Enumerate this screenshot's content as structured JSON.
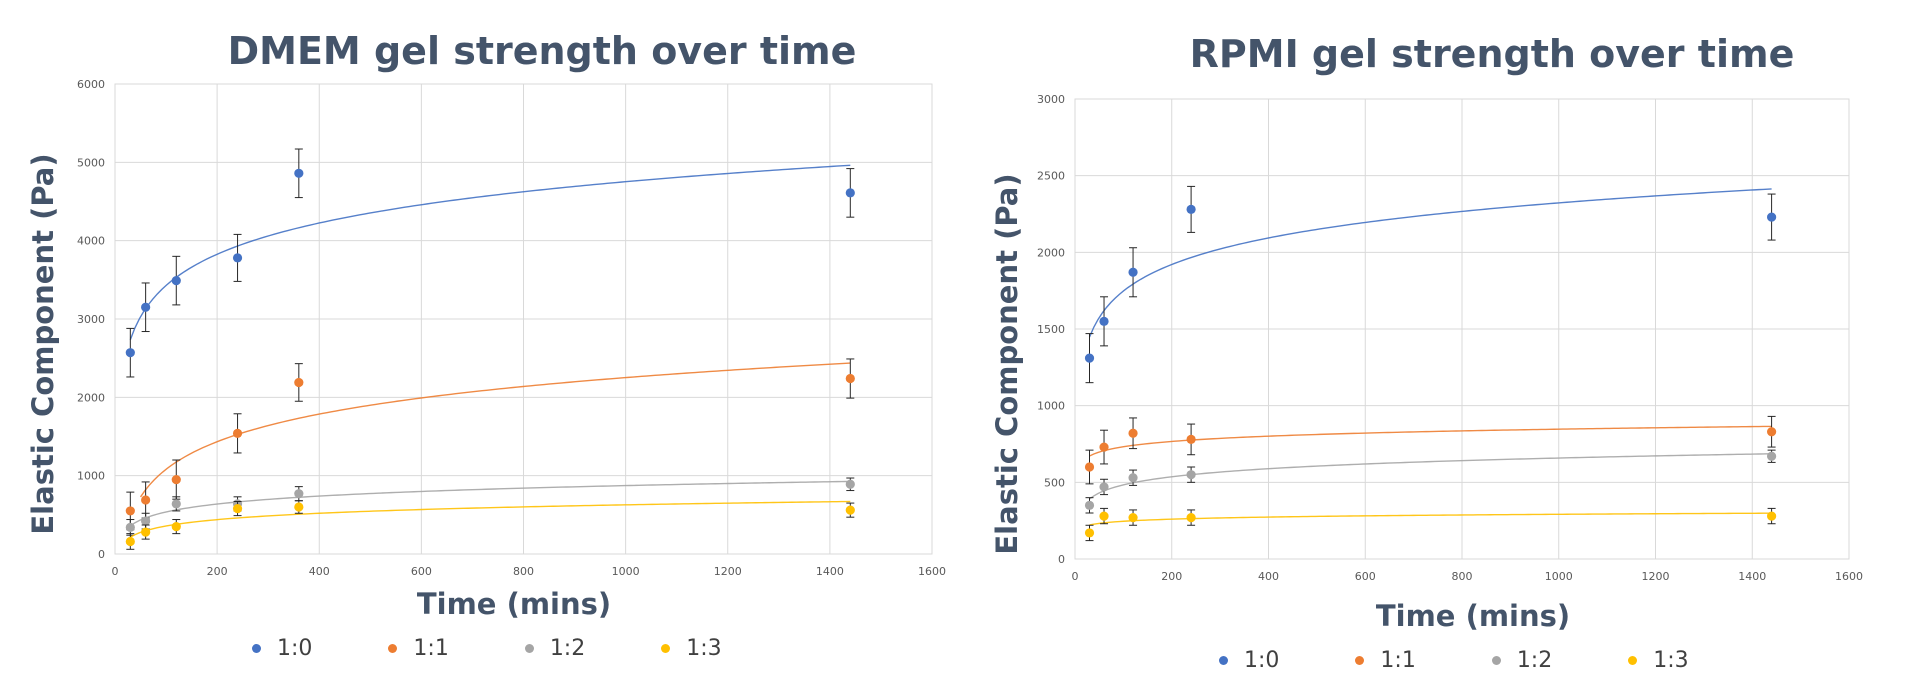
{
  "chart_data": [
    {
      "type": "scatter",
      "title": "DMEM gel strength over time",
      "xlabel": "Time (mins)",
      "ylabel": "Elastic Component (Pa)",
      "xlim": [
        0,
        1600
      ],
      "ylim": [
        0,
        6000
      ],
      "x_ticks": [
        0,
        200,
        400,
        600,
        800,
        1000,
        1200,
        1400,
        1600
      ],
      "y_ticks": [
        0,
        1000,
        2000,
        3000,
        4000,
        5000,
        6000
      ],
      "grid": true,
      "trendline": "logarithmic",
      "legend_position": "bottom",
      "series": [
        {
          "name": "1:0",
          "color": "#4472C4",
          "x": [
            30,
            60,
            120,
            240,
            360,
            1440
          ],
          "y": [
            2570,
            3150,
            3490,
            3780,
            4860,
            4610
          ],
          "error": [
            310,
            310,
            310,
            300,
            310,
            310
          ],
          "trend_range": [
            30,
            1440
          ]
        },
        {
          "name": "1:1",
          "color": "#ED7D31",
          "x": [
            30,
            60,
            120,
            240,
            360,
            1440
          ],
          "y": [
            550,
            690,
            950,
            1540,
            2190,
            2240
          ],
          "error": [
            240,
            230,
            250,
            250,
            240,
            250
          ],
          "trend_range": [
            50,
            1440
          ]
        },
        {
          "name": "1:2",
          "color": "#A5A5A5",
          "x": [
            30,
            60,
            120,
            240,
            360,
            1440
          ],
          "y": [
            340,
            420,
            640,
            640,
            770,
            890
          ],
          "error": [
            100,
            100,
            90,
            90,
            90,
            80
          ],
          "trend_range": [
            30,
            1440
          ]
        },
        {
          "name": "1:3",
          "color": "#FFC000",
          "x": [
            30,
            60,
            120,
            240,
            360,
            1440
          ],
          "y": [
            160,
            280,
            350,
            580,
            600,
            560
          ],
          "error": [
            100,
            90,
            90,
            90,
            80,
            90
          ],
          "trend_range": [
            30,
            1440
          ]
        }
      ]
    },
    {
      "type": "scatter",
      "title": "RPMI gel strength over time",
      "xlabel": "Time (mins)",
      "ylabel": "Elastic Component (Pa)",
      "xlim": [
        0,
        1600
      ],
      "ylim": [
        0,
        3000
      ],
      "x_ticks": [
        0,
        200,
        400,
        600,
        800,
        1000,
        1200,
        1400,
        1600
      ],
      "y_ticks": [
        0,
        500,
        1000,
        1500,
        2000,
        2500,
        3000
      ],
      "grid": true,
      "trendline": "logarithmic",
      "legend_position": "bottom",
      "series": [
        {
          "name": "1:0",
          "color": "#4472C4",
          "x": [
            30,
            60,
            120,
            240,
            1440
          ],
          "y": [
            1310,
            1550,
            1870,
            2280,
            2230
          ],
          "error": [
            160,
            160,
            160,
            150,
            150
          ],
          "trend_range": [
            30,
            1440
          ]
        },
        {
          "name": "1:1",
          "color": "#ED7D31",
          "x": [
            30,
            60,
            120,
            240,
            1440
          ],
          "y": [
            600,
            730,
            820,
            780,
            830
          ],
          "error": [
            110,
            110,
            100,
            100,
            100
          ],
          "trend_range": [
            30,
            1440
          ]
        },
        {
          "name": "1:2",
          "color": "#A5A5A5",
          "x": [
            30,
            60,
            120,
            240,
            1440
          ],
          "y": [
            350,
            470,
            530,
            550,
            670
          ],
          "error": [
            50,
            50,
            50,
            50,
            40
          ],
          "trend_range": [
            30,
            1440
          ]
        },
        {
          "name": "1:3",
          "color": "#FFC000",
          "x": [
            30,
            60,
            120,
            240,
            1440
          ],
          "y": [
            170,
            280,
            270,
            270,
            280
          ],
          "error": [
            50,
            50,
            50,
            50,
            50
          ],
          "trend_range": [
            30,
            1440
          ]
        }
      ]
    }
  ]
}
